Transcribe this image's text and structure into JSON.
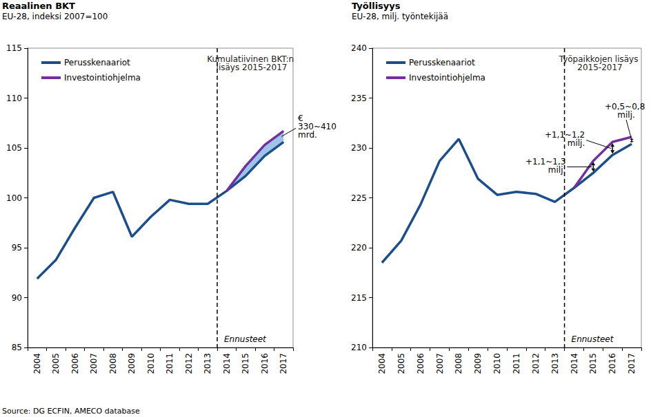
{
  "source": "Source: DG ECFIN, AMECO database",
  "chart_data": [
    {
      "type": "line",
      "title": "Reaalinen BKT",
      "subtitle": "EU-28, indeksi 2007=100",
      "categories": [
        "2004",
        "2005",
        "2006",
        "2007",
        "2008",
        "2009",
        "2010",
        "2011",
        "2012",
        "2013",
        "2014",
        "2015",
        "2016",
        "2017"
      ],
      "series": [
        {
          "name": "Perusskenaariot",
          "color": "#1c4f8a",
          "values": [
            91.9,
            93.8,
            97.0,
            100.0,
            100.6,
            96.1,
            98.1,
            99.8,
            99.4,
            99.4,
            100.7,
            102.2,
            104.2,
            105.6
          ]
        },
        {
          "name": "Investointiohjelma",
          "color": "#7030a0",
          "values": [
            null,
            null,
            null,
            null,
            null,
            null,
            null,
            null,
            null,
            null,
            100.7,
            103.2,
            105.3,
            106.7
          ]
        }
      ],
      "ylim": [
        85,
        115
      ],
      "yticks": [
        85,
        90,
        95,
        100,
        105,
        110,
        115
      ],
      "grid": false,
      "legend": "top-left",
      "annotations": [
        {
          "type": "heading",
          "text": "Kumulatiivinen BKT:n lisäys 2015-2017"
        },
        {
          "type": "area",
          "text": "€330~410 mrd.",
          "x": "2017"
        },
        {
          "type": "divider",
          "text": "Ennusteet",
          "x": "2014"
        }
      ]
    },
    {
      "type": "line",
      "title": "Työllisyys",
      "subtitle": "EU-28, milj. työntekijää",
      "categories": [
        "2004",
        "2005",
        "2006",
        "2007",
        "2008",
        "2009",
        "2010",
        "2011",
        "2012",
        "2013",
        "2014",
        "2015",
        "2016",
        "2017"
      ],
      "series": [
        {
          "name": "Perusskenaariot",
          "color": "#1c4f8a",
          "values": [
            218.5,
            220.7,
            224.3,
            228.7,
            230.9,
            226.9,
            225.3,
            225.6,
            225.4,
            224.6,
            226.0,
            227.5,
            229.3,
            230.4
          ]
        },
        {
          "name": "Investointiohjelma",
          "color": "#7030a0",
          "values": [
            null,
            null,
            null,
            null,
            null,
            null,
            null,
            null,
            null,
            null,
            226.0,
            228.7,
            230.6,
            231.1
          ]
        }
      ],
      "ylim": [
        210,
        240
      ],
      "yticks": [
        210,
        215,
        220,
        225,
        230,
        235,
        240
      ],
      "grid": false,
      "legend": "top-left",
      "annotations": [
        {
          "type": "heading",
          "text": "Työpaikkojen lisäys 2015-2017"
        },
        {
          "type": "arrow",
          "text": "+1,1~1,3 milj.",
          "x": "2015"
        },
        {
          "type": "arrow",
          "text": "+1,1~1,2 milj.",
          "x": "2016"
        },
        {
          "type": "arrow",
          "text": "+0,5~0,8 milj.",
          "x": "2017"
        },
        {
          "type": "divider",
          "text": "Ennusteet",
          "x": "2014"
        }
      ]
    }
  ]
}
